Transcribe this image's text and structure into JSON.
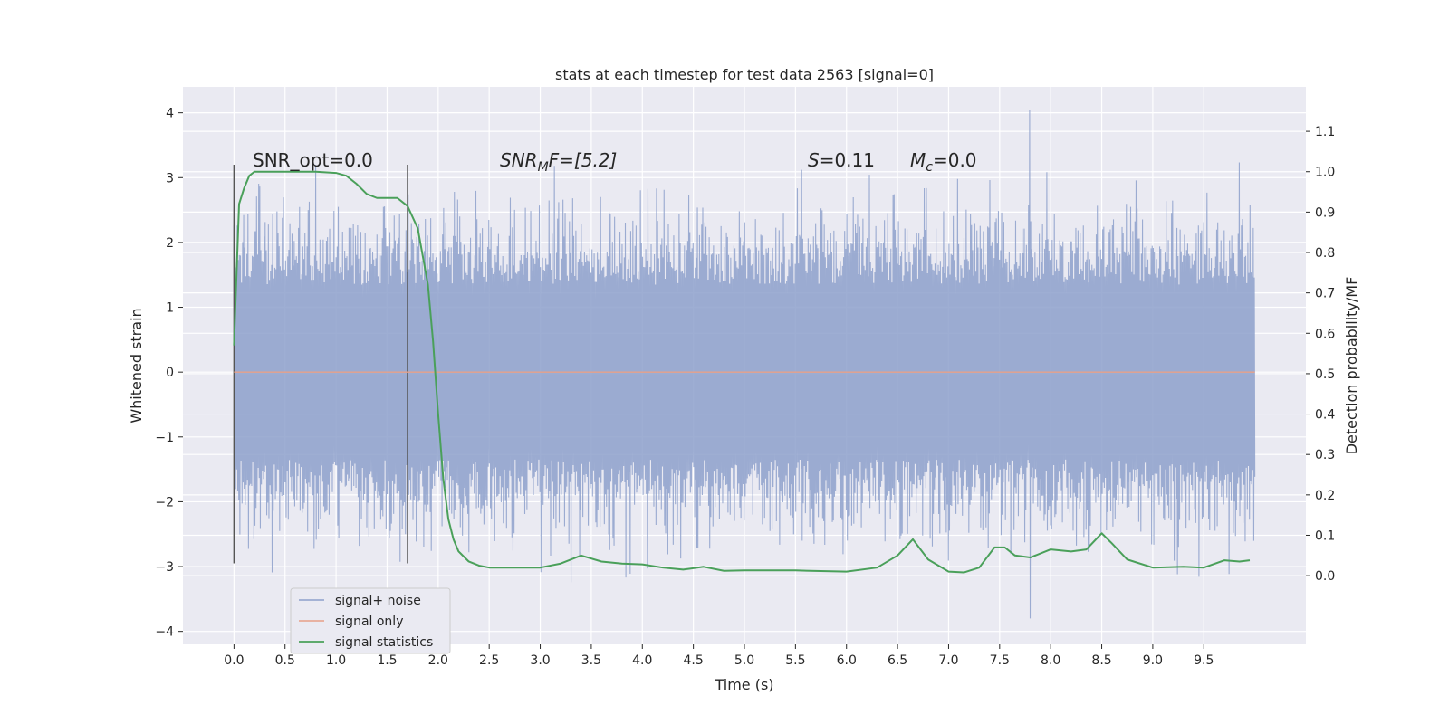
{
  "chart_data": {
    "type": "line",
    "title": "stats at each timestep for test data 2563 [signal=0]",
    "xlabel": "Time (s)",
    "ylabel": "Whitened strain",
    "y2label": "Detection probability/MF",
    "xlim": [
      -0.5,
      10.5
    ],
    "ylim": [
      -4.2,
      4.4
    ],
    "y2lim": [
      -0.17,
      1.21
    ],
    "x_ticks": [
      "0.0",
      "0.5",
      "1.0",
      "1.5",
      "2.0",
      "2.5",
      "3.0",
      "3.5",
      "4.0",
      "4.5",
      "5.0",
      "5.5",
      "6.0",
      "6.5",
      "7.0",
      "7.5",
      "8.0",
      "8.5",
      "9.0",
      "9.5"
    ],
    "y_ticks": [
      "4",
      "3",
      "2",
      "1",
      "0",
      "−1",
      "−2",
      "−3",
      "−4"
    ],
    "y2_ticks": [
      "1.1",
      "1.0",
      "0.9",
      "0.8",
      "0.7",
      "0.6",
      "0.5",
      "0.4",
      "0.3",
      "0.2",
      "0.1",
      "0.0"
    ],
    "grid": true,
    "legend_position": "lower-left",
    "annotations": [
      {
        "text": "SNR_opt=0.0"
      },
      {
        "base": "SNR",
        "sub": "M",
        "tail": "F=[5.2]"
      },
      {
        "base": "S",
        "tail": "=0.11"
      },
      {
        "base": "M",
        "sub": "c",
        "tail": "=0.0"
      }
    ],
    "vertical_markers_x": [
      0.0,
      1.7
    ],
    "series": [
      {
        "name": "signal+ noise",
        "color": "#8da0cb",
        "axis": "left",
        "x_range": [
          0.0,
          10.0
        ],
        "n_points": 1900,
        "typical_amplitude": 1.35,
        "max": 4.05,
        "min": -3.8
      },
      {
        "name": "signal only",
        "color": "#e8a088",
        "axis": "left",
        "x": [
          0.0,
          10.0
        ],
        "values": [
          0.0,
          0.0
        ]
      },
      {
        "name": "signal statistics",
        "color": "#4aa05a",
        "axis": "right",
        "x": [
          0.0,
          0.05,
          0.1,
          0.15,
          0.2,
          0.3,
          0.5,
          0.8,
          1.0,
          1.1,
          1.2,
          1.3,
          1.4,
          1.5,
          1.6,
          1.7,
          1.8,
          1.9,
          1.95,
          2.0,
          2.05,
          2.1,
          2.15,
          2.2,
          2.3,
          2.4,
          2.5,
          2.7,
          3.0,
          3.2,
          3.4,
          3.6,
          3.8,
          4.0,
          4.2,
          4.4,
          4.6,
          4.8,
          5.0,
          5.5,
          6.0,
          6.3,
          6.5,
          6.65,
          6.8,
          7.0,
          7.15,
          7.3,
          7.45,
          7.55,
          7.65,
          7.8,
          8.0,
          8.2,
          8.35,
          8.5,
          8.6,
          8.75,
          9.0,
          9.3,
          9.5,
          9.7,
          9.85,
          9.95
        ],
        "values": [
          0.57,
          0.92,
          0.96,
          0.99,
          1.0,
          1.0,
          1.0,
          1.0,
          0.997,
          0.99,
          0.97,
          0.945,
          0.935,
          0.935,
          0.935,
          0.915,
          0.86,
          0.72,
          0.58,
          0.4,
          0.24,
          0.14,
          0.09,
          0.06,
          0.035,
          0.025,
          0.02,
          0.02,
          0.02,
          0.03,
          0.05,
          0.035,
          0.03,
          0.028,
          0.02,
          0.015,
          0.022,
          0.012,
          0.013,
          0.013,
          0.01,
          0.02,
          0.05,
          0.09,
          0.04,
          0.01,
          0.008,
          0.02,
          0.07,
          0.07,
          0.05,
          0.045,
          0.065,
          0.06,
          0.065,
          0.105,
          0.08,
          0.04,
          0.02,
          0.022,
          0.02,
          0.038,
          0.035,
          0.038
        ]
      }
    ]
  }
}
